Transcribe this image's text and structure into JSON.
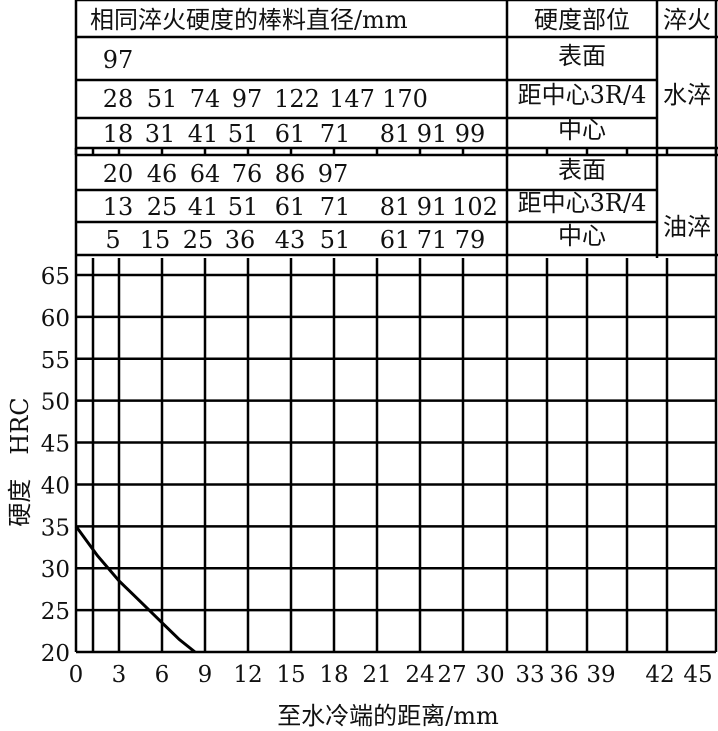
{
  "table": {
    "header": {
      "diameter": "相同淬火硬度的棒料直径/mm",
      "position": "硬度部位",
      "quench": "淬火"
    },
    "groups": [
      {
        "quench": "水淬",
        "rows": [
          {
            "position": "表面",
            "values": [
              "97"
            ]
          },
          {
            "position": "距中心3R/4",
            "values": [
              "28",
              "51",
              "74",
              "97",
              "122",
              "147",
              "170"
            ]
          },
          {
            "position": "中心",
            "values": [
              "18",
              "31",
              "41",
              "51",
              "61",
              "71",
              "81",
              "91",
              "99"
            ]
          }
        ]
      },
      {
        "quench": "油淬",
        "rows": [
          {
            "position": "表面",
            "values": [
              "20",
              "46",
              "64",
              "76",
              "86",
              "97"
            ]
          },
          {
            "position": "距中心3R/4",
            "values": [
              "13",
              "25",
              "41",
              "51",
              "61",
              "71",
              "81",
              "91",
              "102"
            ]
          },
          {
            "position": "中心",
            "values": [
              "5",
              "15",
              "25",
              "36",
              "43",
              "51",
              "61",
              "71",
              "79"
            ]
          }
        ]
      }
    ]
  },
  "chart_data": {
    "type": "line",
    "title": "",
    "xlabel": "至水冷端的距离/mm",
    "ylabel": "硬度　HRC",
    "x_ticks": [
      "0",
      "3",
      "6",
      "9",
      "12",
      "15",
      "18",
      "21",
      "24",
      "27",
      "30",
      "33",
      "36",
      "39",
      "42",
      "45"
    ],
    "y_ticks": [
      "20",
      "25",
      "30",
      "35",
      "40",
      "45",
      "50",
      "55",
      "60",
      "65"
    ],
    "ylim": [
      20,
      65
    ],
    "grid": true,
    "series": [
      {
        "x": [
          0,
          1.5,
          3,
          4.5,
          6,
          7.2,
          8.3
        ],
        "y": [
          35,
          31.5,
          28.5,
          26,
          23.5,
          21.5,
          20
        ],
        "color": "#000000"
      }
    ]
  }
}
